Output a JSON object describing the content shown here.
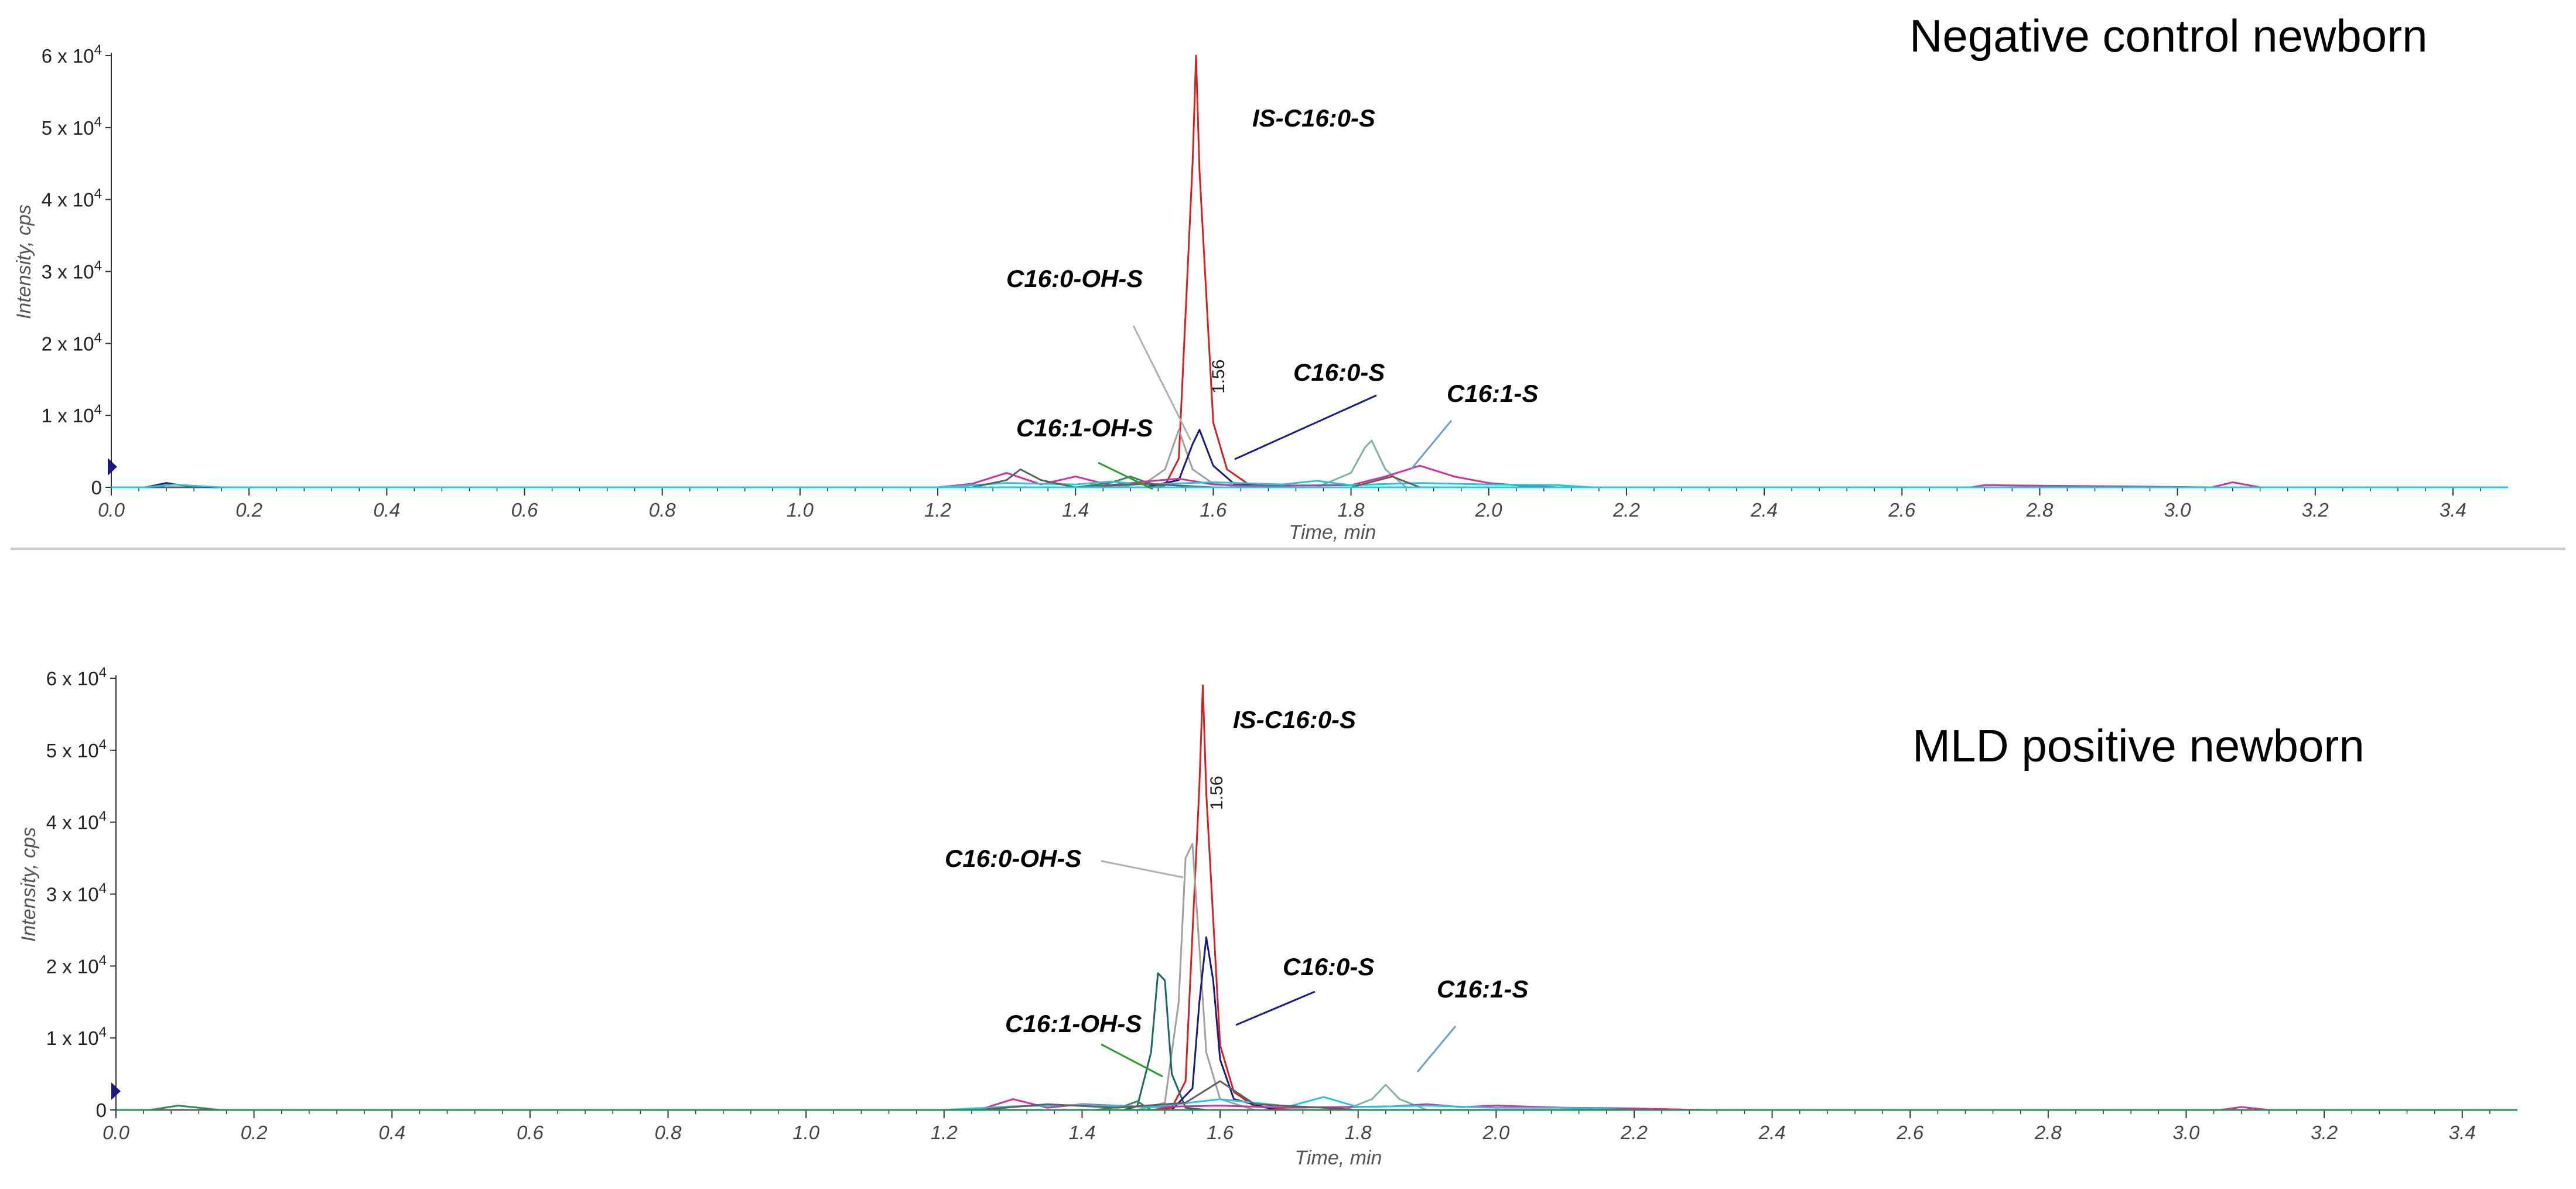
{
  "chart_data": [
    {
      "type": "line",
      "title": "Negative control newborn",
      "xlabel": "Time, min",
      "ylabel": "Intensity, cps",
      "xlim": [
        0,
        3.48
      ],
      "ylim": [
        0,
        60000
      ],
      "x_ticks": [
        "0.0",
        "0.2",
        "0.4",
        "0.6",
        "0.8",
        "1.0",
        "1.2",
        "1.4",
        "1.6",
        "1.8",
        "2.0",
        "2.2",
        "2.4",
        "2.6",
        "2.8",
        "3.0",
        "3.2",
        "3.4"
      ],
      "y_ticks": [
        {
          "base": "0",
          "exp": ""
        },
        {
          "base": "1 x 10",
          "exp": "4"
        },
        {
          "base": "2 x 10",
          "exp": "4"
        },
        {
          "base": "3 x 10",
          "exp": "4"
        },
        {
          "base": "4 x 10",
          "exp": "4"
        },
        {
          "base": "5 x 10",
          "exp": "4"
        },
        {
          "base": "6 x 10",
          "exp": "4"
        }
      ],
      "retention_time_label": "1.56",
      "series": [
        {
          "color": "#d42020",
          "x": [
            1.5,
            1.53,
            1.55,
            1.57,
            1.575,
            1.58,
            1.6,
            1.62,
            1.65,
            1.7
          ],
          "y": [
            0,
            300,
            4000,
            45000,
            60000,
            44000,
            9000,
            2500,
            500,
            0
          ]
        },
        {
          "color": "#a0a0a0",
          "x": [
            1.45,
            1.5,
            1.53,
            1.55,
            1.57,
            1.6,
            1.65
          ],
          "y": [
            0,
            500,
            2500,
            8000,
            2500,
            500,
            0
          ]
        },
        {
          "color": "#1a1a80",
          "x": [
            1.5,
            1.55,
            1.57,
            1.58,
            1.6,
            1.63,
            1.68
          ],
          "y": [
            0,
            1000,
            6000,
            8000,
            3000,
            500,
            0
          ]
        },
        {
          "color": "#2e8b57",
          "x": [
            1.4,
            1.45,
            1.48,
            1.5,
            1.53
          ],
          "y": [
            0,
            600,
            1500,
            800,
            0
          ]
        },
        {
          "color": "#7fb3a8",
          "x": [
            1.75,
            1.8,
            1.82,
            1.83,
            1.85,
            1.88
          ],
          "y": [
            0,
            2000,
            5500,
            6500,
            2500,
            0
          ]
        },
        {
          "color": "#d230a0",
          "x": [
            1.2,
            1.25,
            1.3,
            1.35,
            1.4,
            1.45,
            1.5,
            1.55,
            1.6,
            1.65,
            1.8,
            1.85,
            1.9,
            1.95,
            2.0,
            2.05,
            2.1,
            2.7,
            2.72,
            3.05,
            3.08,
            3.12
          ],
          "y": [
            0,
            500,
            2000,
            400,
            1500,
            300,
            800,
            1200,
            400,
            200,
            300,
            1500,
            3000,
            1500,
            600,
            200,
            0,
            0,
            300,
            0,
            700,
            0
          ]
        },
        {
          "color": "#20c8d8",
          "x": [
            1.2,
            1.3,
            1.4,
            1.45,
            1.5,
            1.6,
            1.7,
            1.75,
            1.8,
            1.9,
            2.0,
            2.1,
            2.15
          ],
          "y": [
            0,
            600,
            400,
            800,
            400,
            700,
            400,
            900,
            300,
            600,
            400,
            300,
            0
          ]
        },
        {
          "color": "#606060",
          "x": [
            1.25,
            1.3,
            1.32,
            1.35,
            1.4,
            1.5,
            1.6,
            1.8,
            1.86,
            1.9
          ],
          "y": [
            0,
            1000,
            2500,
            1000,
            0,
            500,
            0,
            0,
            1500,
            0
          ]
        },
        {
          "color": "#1a1a80",
          "x": [
            0.05,
            0.08,
            0.1,
            0.15
          ],
          "y": [
            0,
            600,
            300,
            0
          ]
        },
        {
          "color": "#20c8d8",
          "x": [
            0.05,
            0.09,
            0.12,
            0.16
          ],
          "y": [
            0,
            400,
            200,
            0
          ]
        }
      ],
      "annotations": [
        "IS-C16:0-S",
        "C16:0-OH-S",
        "C16:0-S",
        "C16:1-S",
        "C16:1-OH-S"
      ]
    },
    {
      "type": "line",
      "title": "MLD positive newborn",
      "xlabel": "Time, min",
      "ylabel": "Intensity, cps",
      "xlim": [
        0,
        3.48
      ],
      "ylim": [
        0,
        60000
      ],
      "x_ticks": [
        "0.0",
        "0.2",
        "0.4",
        "0.6",
        "0.8",
        "1.0",
        "1.2",
        "1.4",
        "1.6",
        "1.8",
        "2.0",
        "2.2",
        "2.4",
        "2.6",
        "2.8",
        "3.0",
        "3.2",
        "3.4"
      ],
      "y_ticks": [
        {
          "base": "0",
          "exp": ""
        },
        {
          "base": "1 x 10",
          "exp": "4"
        },
        {
          "base": "2 x 10",
          "exp": "4"
        },
        {
          "base": "3 x 10",
          "exp": "4"
        },
        {
          "base": "4 x 10",
          "exp": "4"
        },
        {
          "base": "5 x 10",
          "exp": "4"
        },
        {
          "base": "6 x 10",
          "exp": "4"
        }
      ],
      "retention_time_label": "1.56",
      "series": [
        {
          "color": "#d42020",
          "x": [
            1.5,
            1.53,
            1.55,
            1.57,
            1.575,
            1.58,
            1.6,
            1.62,
            1.65,
            1.7
          ],
          "y": [
            0,
            300,
            4000,
            45000,
            59000,
            44000,
            9000,
            2500,
            500,
            0
          ]
        },
        {
          "color": "#a0a0a0",
          "x": [
            1.48,
            1.52,
            1.54,
            1.55,
            1.56,
            1.58,
            1.6,
            1.65
          ],
          "y": [
            0,
            1000,
            15000,
            35000,
            37000,
            8000,
            1500,
            0
          ]
        },
        {
          "color": "#1a6a60",
          "x": [
            1.46,
            1.48,
            1.5,
            1.51,
            1.52,
            1.53,
            1.55,
            1.58
          ],
          "y": [
            0,
            500,
            8000,
            19000,
            18000,
            5000,
            300,
            0
          ]
        },
        {
          "color": "#1a1a80",
          "x": [
            1.53,
            1.56,
            1.57,
            1.58,
            1.59,
            1.6,
            1.62,
            1.68
          ],
          "y": [
            0,
            3000,
            15000,
            24000,
            18000,
            7000,
            1500,
            0
          ]
        },
        {
          "color": "#7fb3a8",
          "x": [
            1.78,
            1.82,
            1.84,
            1.86,
            1.9
          ],
          "y": [
            0,
            1500,
            3500,
            1500,
            0
          ]
        },
        {
          "color": "#2e8b57",
          "x": [
            1.42,
            1.46,
            1.48,
            1.5
          ],
          "y": [
            0,
            500,
            1200,
            0
          ]
        },
        {
          "color": "#d230a0",
          "x": [
            1.25,
            1.3,
            1.35,
            1.4,
            1.5,
            1.6,
            1.7,
            1.85,
            1.9,
            1.95,
            2.0,
            2.1,
            2.2,
            2.3,
            3.05,
            3.08,
            3.12
          ],
          "y": [
            0,
            1500,
            300,
            800,
            400,
            600,
            300,
            500,
            800,
            400,
            600,
            300,
            200,
            0,
            0,
            400,
            0
          ]
        },
        {
          "color": "#20c8d8",
          "x": [
            1.2,
            1.3,
            1.4,
            1.5,
            1.6,
            1.7,
            1.75,
            1.8,
            1.9,
            2.0,
            2.1,
            2.2
          ],
          "y": [
            0,
            500,
            700,
            400,
            1500,
            500,
            1800,
            400,
            600,
            300,
            300,
            0
          ]
        },
        {
          "color": "#606060",
          "x": [
            1.25,
            1.35,
            1.45,
            1.55,
            1.6,
            1.65,
            1.75,
            1.8
          ],
          "y": [
            0,
            800,
            300,
            1000,
            4000,
            800,
            300,
            0
          ]
        },
        {
          "color": "#2e8b57",
          "x": [
            0.05,
            0.09,
            0.12,
            0.15
          ],
          "y": [
            0,
            600,
            300,
            0
          ]
        }
      ],
      "annotations": [
        "IS-C16:0-S",
        "C16:0-OH-S",
        "C16:0-S",
        "C16:1-S",
        "C16:1-OH-S"
      ]
    }
  ]
}
